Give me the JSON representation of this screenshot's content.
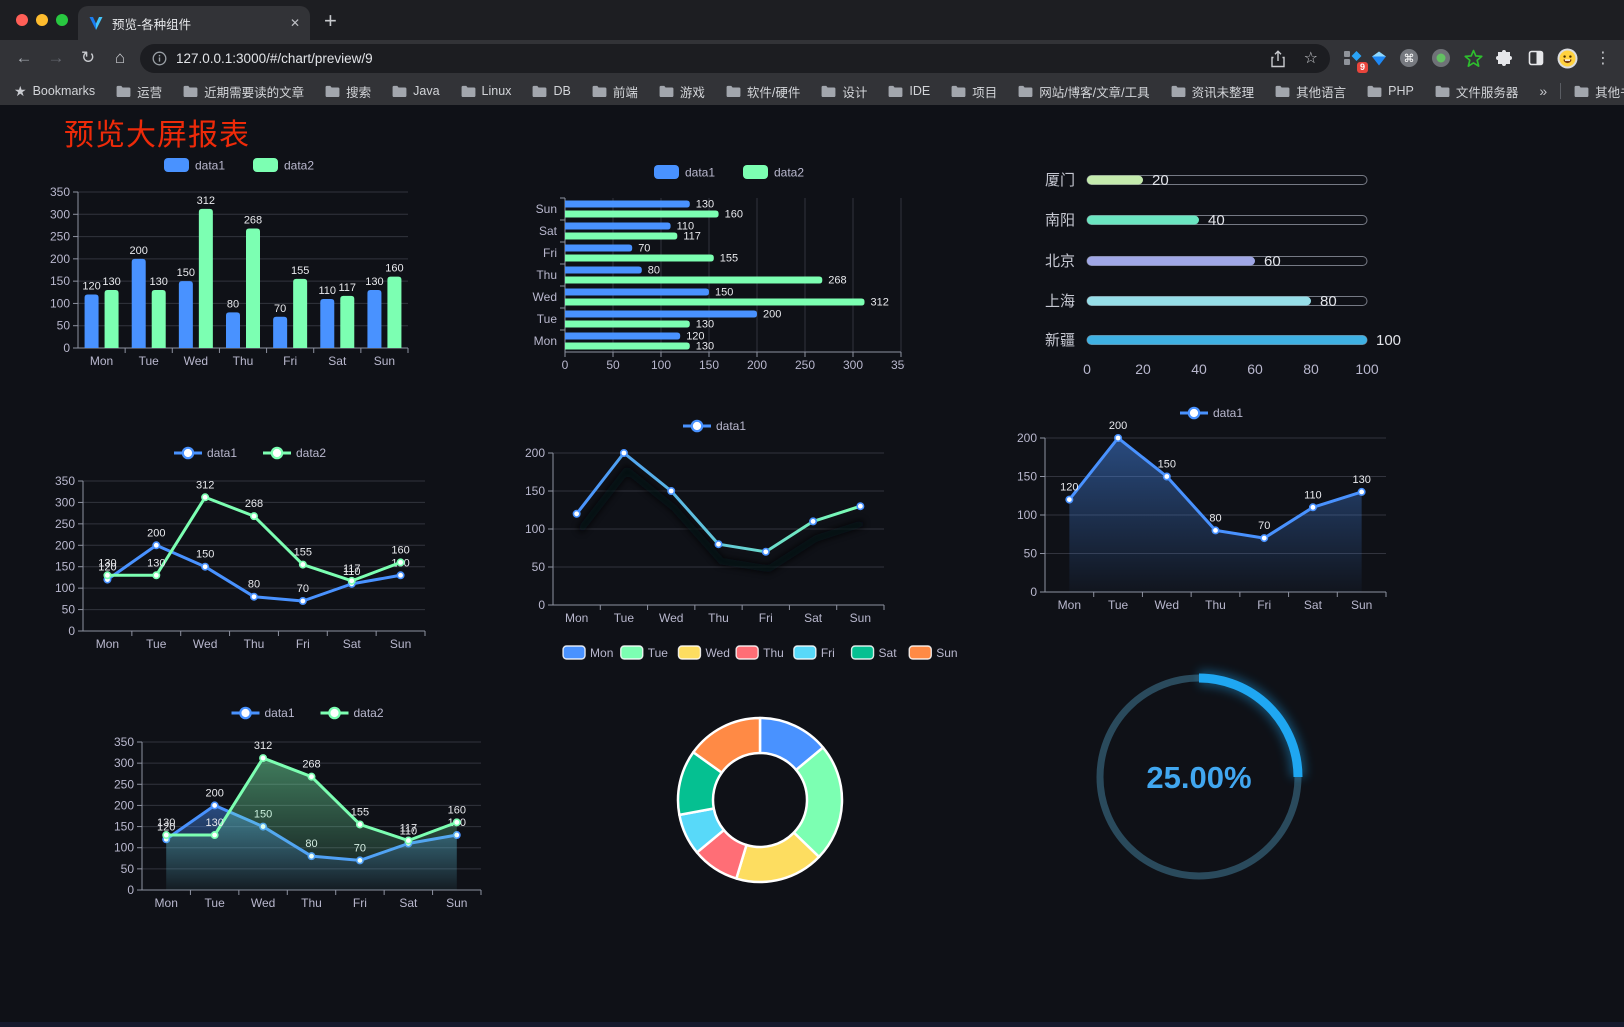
{
  "browser": {
    "tab_title": "预览-各种组件",
    "url": "127.0.0.1:3000/#/chart/preview/9",
    "extension_badge": "9"
  },
  "bookmarks": {
    "label": "Bookmarks",
    "folders": [
      "运营",
      "近期需要读的文章",
      "搜索",
      "Java",
      "Linux",
      "DB",
      "前端",
      "游戏",
      "软件/硬件",
      "设计",
      "IDE",
      "项目",
      "网站/博客/文章/工具",
      "资讯未整理",
      "其他语言",
      "PHP",
      "文件服务器"
    ],
    "overflow": "»",
    "other": "其他书签"
  },
  "page": {
    "title": "预览大屏报表",
    "title_color": "#ee2a09"
  },
  "chart_data": [
    {
      "id": "barv",
      "type": "bar",
      "categories": [
        "Mon",
        "Tue",
        "Wed",
        "Thu",
        "Fri",
        "Sat",
        "Sun"
      ],
      "series": [
        {
          "name": "data1",
          "color": "#4992ff",
          "values": [
            120,
            200,
            150,
            80,
            70,
            110,
            130
          ]
        },
        {
          "name": "data2",
          "color": "#7cffb2",
          "values": [
            130,
            130,
            312,
            268,
            155,
            117,
            160
          ]
        }
      ],
      "ylim": [
        0,
        350
      ],
      "ytick": 50,
      "grid": true,
      "legend_position": "top",
      "labels": true
    },
    {
      "id": "barh",
      "type": "bar",
      "orientation": "horizontal",
      "categories": [
        "Mon",
        "Tue",
        "Wed",
        "Thu",
        "Fri",
        "Sat",
        "Sun"
      ],
      "series": [
        {
          "name": "data1",
          "color": "#4992ff",
          "values": [
            120,
            200,
            150,
            80,
            70,
            110,
            130
          ]
        },
        {
          "name": "data2",
          "color": "#7cffb2",
          "values": [
            130,
            130,
            312,
            268,
            155,
            117,
            160
          ]
        }
      ],
      "xlim": [
        0,
        350
      ],
      "xtick": 50,
      "grid": true,
      "legend_position": "top",
      "labels": true
    },
    {
      "id": "progress",
      "type": "bar",
      "orientation": "horizontal-progress",
      "items": [
        {
          "label": "厦门",
          "value": 20,
          "color": "#c4ebad"
        },
        {
          "label": "南阳",
          "value": 40,
          "color": "#6be6c1"
        },
        {
          "label": "北京",
          "value": 60,
          "color": "#a0a7e6"
        },
        {
          "label": "上海",
          "value": 80,
          "color": "#96dee8"
        },
        {
          "label": "新疆",
          "value": 100,
          "color": "#3fb1e3"
        }
      ],
      "max": 100,
      "xticks": [
        0,
        20,
        40,
        60,
        80,
        100
      ]
    },
    {
      "id": "line2",
      "type": "line",
      "categories": [
        "Mon",
        "Tue",
        "Wed",
        "Thu",
        "Fri",
        "Sat",
        "Sun"
      ],
      "series": [
        {
          "name": "data1",
          "color": "#4992ff",
          "values": [
            120,
            200,
            150,
            80,
            70,
            110,
            130
          ]
        },
        {
          "name": "data2",
          "color": "#7cffb2",
          "values": [
            130,
            130,
            312,
            268,
            155,
            117,
            160
          ]
        }
      ],
      "ylim": [
        0,
        350
      ],
      "ytick": 50,
      "grid": true,
      "legend_position": "top",
      "labels": true
    },
    {
      "id": "linegrad",
      "type": "line",
      "categories": [
        "Mon",
        "Tue",
        "Wed",
        "Thu",
        "Fri",
        "Sat",
        "Sun"
      ],
      "series": [
        {
          "name": "data1",
          "color": "#4992ff",
          "gradient": [
            "#4992ff",
            "#7cffb2"
          ],
          "marker_color": "#4992ff",
          "values": [
            120,
            200,
            150,
            80,
            70,
            110,
            130
          ]
        }
      ],
      "ylim": [
        0,
        200
      ],
      "ytick": 50,
      "grid": true,
      "legend_position": "top",
      "labels": false,
      "line_shadow": true
    },
    {
      "id": "area1",
      "type": "area",
      "categories": [
        "Mon",
        "Tue",
        "Wed",
        "Thu",
        "Fri",
        "Sat",
        "Sun"
      ],
      "series": [
        {
          "name": "data1",
          "color": "#4992ff",
          "area": true,
          "values": [
            120,
            200,
            150,
            80,
            70,
            110,
            130
          ]
        }
      ],
      "ylim": [
        0,
        200
      ],
      "ytick": 50,
      "grid": true,
      "legend_position": "top",
      "labels": true
    },
    {
      "id": "area2",
      "type": "area",
      "categories": [
        "Mon",
        "Tue",
        "Wed",
        "Thu",
        "Fri",
        "Sat",
        "Sun"
      ],
      "series": [
        {
          "name": "data1",
          "color": "#4992ff",
          "area": true,
          "values": [
            120,
            200,
            150,
            80,
            70,
            110,
            130
          ]
        },
        {
          "name": "data2",
          "color": "#7cffb2",
          "area": true,
          "values": [
            130,
            130,
            312,
            268,
            155,
            117,
            160
          ]
        }
      ],
      "ylim": [
        0,
        350
      ],
      "ytick": 50,
      "grid": true,
      "legend_position": "top",
      "labels": true
    },
    {
      "id": "donut",
      "type": "pie",
      "items": [
        {
          "label": "Mon",
          "value": 120,
          "color": "#4992ff"
        },
        {
          "label": "Tue",
          "value": 200,
          "color": "#7cffb2"
        },
        {
          "label": "Wed",
          "value": 150,
          "color": "#fddd60"
        },
        {
          "label": "Thu",
          "value": 80,
          "color": "#ff6e76"
        },
        {
          "label": "Fri",
          "value": 70,
          "color": "#58d9f9"
        },
        {
          "label": "Sat",
          "value": 110,
          "color": "#05c091"
        },
        {
          "label": "Sun",
          "value": 130,
          "color": "#ff8a45"
        }
      ],
      "legend_position": "top"
    },
    {
      "id": "gauge",
      "type": "gauge",
      "value": 25,
      "display": "25.00%",
      "max": 100,
      "color": "#1fa7f2",
      "track": "#2a4a5c",
      "text_color": "#41a7f0"
    }
  ]
}
